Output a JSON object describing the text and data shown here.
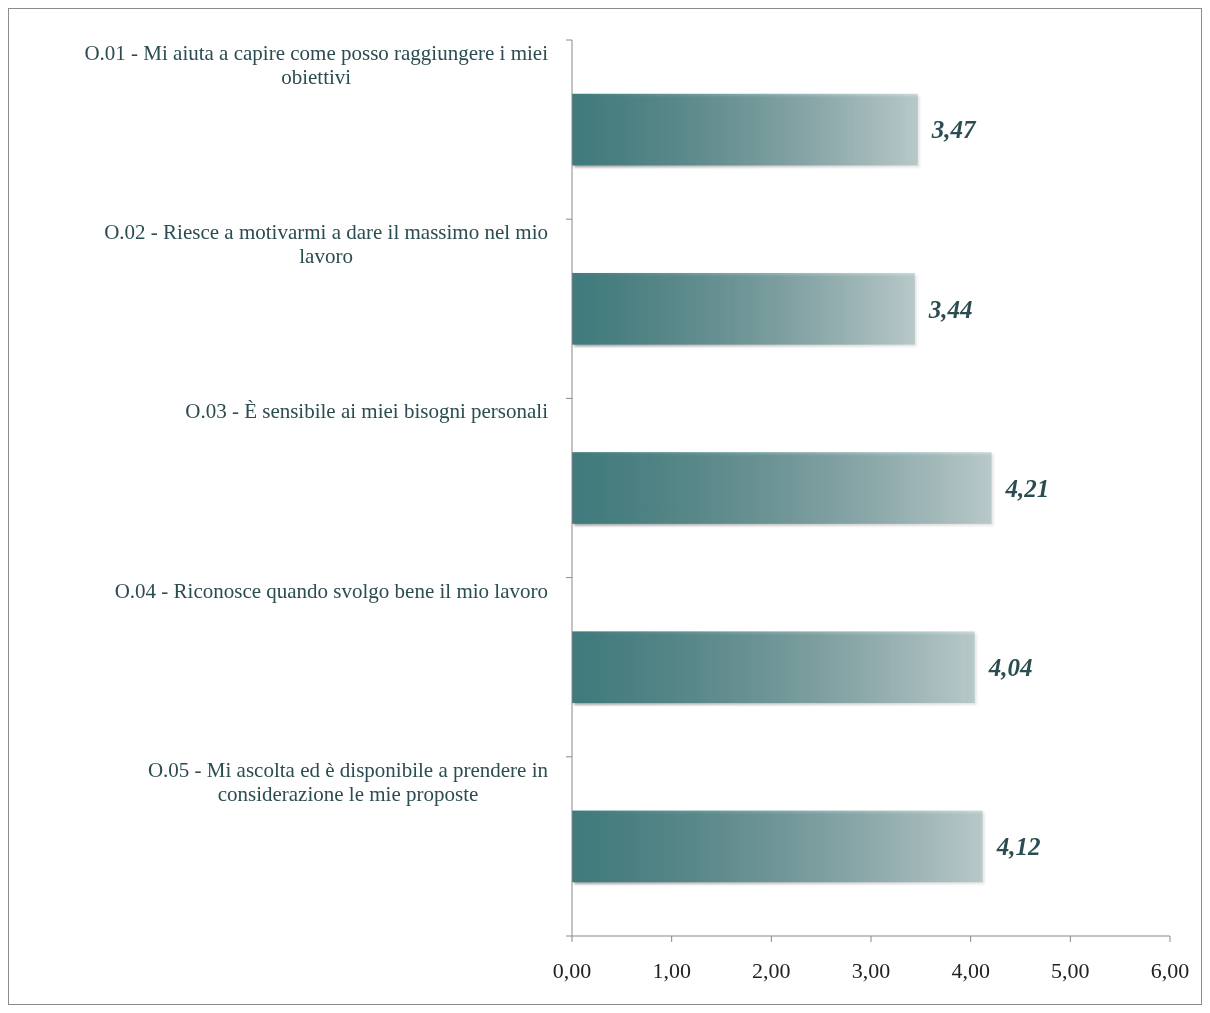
{
  "chart_data": {
    "type": "bar",
    "orientation": "horizontal",
    "categories": [
      "O.01 - Mi aiuta a capire come posso raggiungere i miei obiettivi",
      "O.02 - Riesce a motivarmi a dare il massimo nel mio lavoro",
      "O.03 - È sensibile ai miei bisogni personali",
      "O.04 - Riconosce quando svolgo bene il mio lavoro",
      "O.05 - Mi ascolta ed è disponibile a prendere in considerazione le mie proposte"
    ],
    "values": [
      3.47,
      3.44,
      4.21,
      4.04,
      4.12
    ],
    "value_labels": [
      "3,47",
      "3,44",
      "4,21",
      "4,04",
      "4,12"
    ],
    "color": "#3f7a7c",
    "xlim": [
      0,
      6
    ],
    "xticks": [
      {
        "value": 0,
        "label": "0,00"
      },
      {
        "value": 1,
        "label": "1,00"
      },
      {
        "value": 2,
        "label": "2,00"
      },
      {
        "value": 3,
        "label": "3,00"
      },
      {
        "value": 4,
        "label": "4,00"
      },
      {
        "value": 5,
        "label": "5,00"
      },
      {
        "value": 6,
        "label": "6,00"
      }
    ],
    "grid": false
  }
}
